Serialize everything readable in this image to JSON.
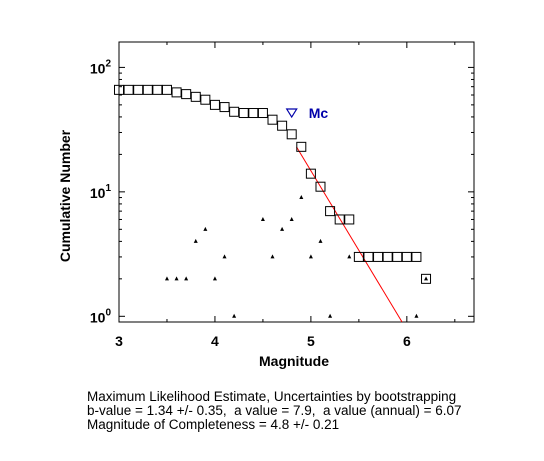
{
  "chart_data": {
    "type": "scatter",
    "xlabel": "Magnitude",
    "ylabel": "Cumulative Number",
    "xlim": [
      3,
      6.7
    ],
    "ylim": [
      0.9,
      160
    ],
    "y_scale": "log",
    "x_ticks": [
      "3",
      "4",
      "5",
      "6"
    ],
    "y_ticks": [
      {
        "value": 1,
        "base": "10",
        "exp": "0"
      },
      {
        "value": 10,
        "base": "10",
        "exp": "1"
      },
      {
        "value": 100,
        "base": "10",
        "exp": "2"
      }
    ],
    "grid": false,
    "series": [
      {
        "marker": "square",
        "x": [
          3.0,
          3.1,
          3.2,
          3.3,
          3.4,
          3.5,
          3.6,
          3.7,
          3.8,
          3.9,
          4.0,
          4.1,
          4.2,
          4.3,
          4.4,
          4.5,
          4.6,
          4.7,
          4.8,
          4.9,
          5.0,
          5.1,
          5.2,
          5.3,
          5.4,
          5.5,
          5.6,
          5.7,
          5.8,
          5.9,
          6.0,
          6.1,
          6.2
        ],
        "y": [
          66,
          66,
          66,
          66,
          66,
          66,
          63,
          61,
          58,
          55,
          50,
          48,
          44,
          43,
          43,
          43,
          38,
          34,
          29,
          23,
          14,
          11,
          7,
          6,
          6,
          3,
          3,
          3,
          3,
          3,
          3,
          3,
          2
        ]
      },
      {
        "marker": "triangle",
        "x": [
          3.5,
          3.6,
          3.7,
          3.8,
          3.9,
          4.0,
          4.1,
          4.2,
          4.5,
          4.6,
          4.7,
          4.8,
          4.9,
          5.0,
          5.1,
          5.2,
          5.4,
          6.1,
          6.2
        ],
        "y": [
          2,
          2,
          2,
          4,
          5,
          2,
          3,
          1,
          6,
          3,
          5,
          6,
          9,
          3,
          4,
          1,
          3,
          1,
          2
        ]
      }
    ],
    "fit_line": {
      "color": "#ff0000",
      "x": [
        4.85,
        5.95
      ],
      "y": [
        23,
        0.9
      ]
    },
    "mc_marker": {
      "label": "Mc",
      "x": 4.8,
      "y": 43,
      "color": "#0000aa"
    }
  },
  "caption": {
    "line1": "Maximum Likelihood Estimate, Uncertainties by bootstrapping",
    "line2": "b-value = 1.34 +/- 0.35,  a value = 7.9,  a value (annual) = 6.07",
    "line3": "Magnitude of Completeness = 4.8 +/- 0.21"
  }
}
